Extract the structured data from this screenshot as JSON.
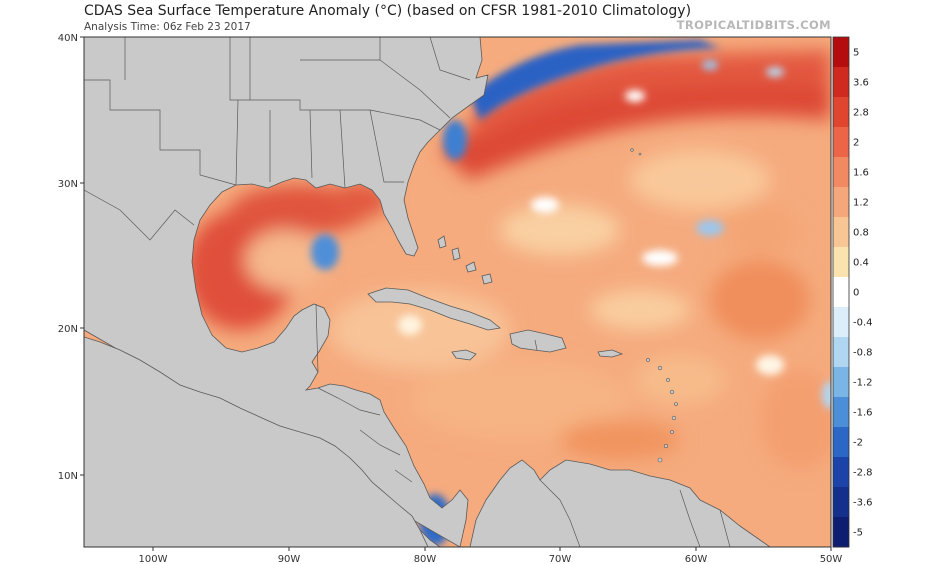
{
  "header": {
    "title": "CDAS Sea Surface Temperature Anomaly (°C) (based on CFSR 1981-2010 Climatology)",
    "analysis_time": "Analysis Time: 06z Feb 23 2017",
    "brand": "TROPICALTIDBITS.COM"
  },
  "axes": {
    "lat_ticks": [
      "40N",
      "30N",
      "20N",
      "10N"
    ],
    "lon_ticks": [
      "100W",
      "90W",
      "80W",
      "70W",
      "60W",
      "50W"
    ]
  },
  "colorbar": {
    "labels": [
      "5",
      "3.6",
      "2.8",
      "2",
      "1.6",
      "1.2",
      "0.8",
      "0.4",
      "0",
      "-0.4",
      "-0.8",
      "-1.2",
      "-1.6",
      "-2",
      "-2.8",
      "-3.6",
      "-5"
    ],
    "colors": [
      "#b30d0d",
      "#cf2a20",
      "#e0452f",
      "#ec6548",
      "#f18a62",
      "#f5a77c",
      "#f8c594",
      "#fbe3b0",
      "#ffffff",
      "#dbeefa",
      "#b1d6f2",
      "#7ab5e6",
      "#4c8fd8",
      "#2c67c6",
      "#1c44a8",
      "#142f8c",
      "#0d1d70"
    ]
  },
  "colors": {
    "land": "#c9c9c9",
    "border": "#5a5a5a",
    "ocean_base": "#f5ab7e"
  }
}
